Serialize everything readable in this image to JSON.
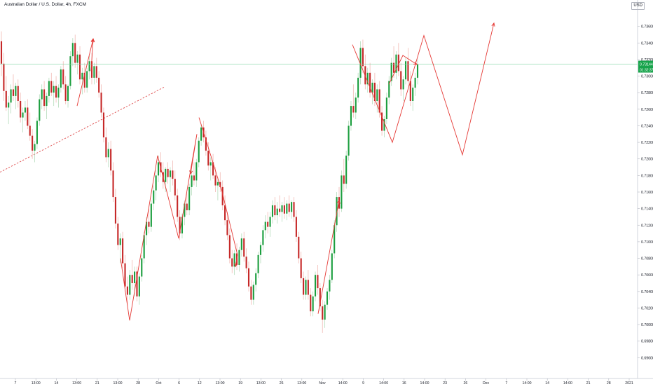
{
  "chart_data": {
    "type": "candlestick",
    "title": "Australian Dollar / U.S. Dollar, 4h, FXCM",
    "currency": "USD",
    "price_label": "0.73144",
    "countdown": "01:32:37",
    "ylim": [
      0.694,
      0.738
    ],
    "y_ticks": [
      "0.73600",
      "0.73400",
      "0.73200",
      "0.73000",
      "0.72800",
      "0.72600",
      "0.72400",
      "0.72200",
      "0.72000",
      "0.71800",
      "0.71600",
      "0.71400",
      "0.71200",
      "0.71000",
      "0.70800",
      "0.70600",
      "0.70400",
      "0.70200",
      "0.70000",
      "0.69800",
      "0.69600"
    ],
    "x_ticks": [
      "7",
      "13:00",
      "14",
      "13:00",
      "21",
      "13:00",
      "28",
      "Oct",
      "6",
      "12",
      "13:00",
      "19",
      "13:00",
      "26",
      "13:00",
      "Nov",
      "14:00",
      "9",
      "14:00",
      "16",
      "14:00",
      "23",
      "26",
      "Dec",
      "7",
      "14:00",
      "14",
      "14:00",
      "21",
      "28",
      "2021"
    ],
    "current_price": 0.73144,
    "candles": [
      [
        0.7342,
        0.7354,
        0.73,
        0.7315
      ],
      [
        0.7315,
        0.7328,
        0.727,
        0.7282
      ],
      [
        0.7282,
        0.73,
        0.7258,
        0.7262
      ],
      [
        0.7262,
        0.7276,
        0.7242,
        0.7268
      ],
      [
        0.7268,
        0.729,
        0.7255,
        0.7284
      ],
      [
        0.7284,
        0.7302,
        0.727,
        0.7276
      ],
      [
        0.7276,
        0.7292,
        0.726,
        0.7288
      ],
      [
        0.7288,
        0.7296,
        0.7262,
        0.727
      ],
      [
        0.727,
        0.728,
        0.7244,
        0.725
      ],
      [
        0.725,
        0.7262,
        0.7232,
        0.7256
      ],
      [
        0.7256,
        0.727,
        0.7246,
        0.7262
      ],
      [
        0.7262,
        0.7272,
        0.7236,
        0.724
      ],
      [
        0.724,
        0.7256,
        0.7222,
        0.7228
      ],
      [
        0.7228,
        0.7236,
        0.72,
        0.721
      ],
      [
        0.721,
        0.7222,
        0.7196,
        0.7218
      ],
      [
        0.7218,
        0.725,
        0.7212,
        0.7246
      ],
      [
        0.7246,
        0.7278,
        0.724,
        0.7272
      ],
      [
        0.7272,
        0.729,
        0.726,
        0.7284
      ],
      [
        0.7284,
        0.7294,
        0.7258,
        0.7264
      ],
      [
        0.7264,
        0.728,
        0.7248,
        0.7276
      ],
      [
        0.7276,
        0.7298,
        0.7268,
        0.7294
      ],
      [
        0.7294,
        0.7304,
        0.7276,
        0.728
      ],
      [
        0.728,
        0.7294,
        0.7264,
        0.7288
      ],
      [
        0.7288,
        0.73,
        0.7268,
        0.7274
      ],
      [
        0.7274,
        0.729,
        0.7262,
        0.7286
      ],
      [
        0.7286,
        0.7312,
        0.728,
        0.7308
      ],
      [
        0.7308,
        0.7318,
        0.7284,
        0.729
      ],
      [
        0.729,
        0.73,
        0.7266,
        0.727
      ],
      [
        0.727,
        0.729,
        0.7262,
        0.7288
      ],
      [
        0.7288,
        0.733,
        0.7284,
        0.7324
      ],
      [
        0.7324,
        0.7346,
        0.7312,
        0.734
      ],
      [
        0.734,
        0.735,
        0.731,
        0.7316
      ],
      [
        0.7316,
        0.733,
        0.7302,
        0.7326
      ],
      [
        0.7326,
        0.7336,
        0.729,
        0.7296
      ],
      [
        0.7296,
        0.731,
        0.7278,
        0.7304
      ],
      [
        0.7304,
        0.7316,
        0.728,
        0.7286
      ],
      [
        0.7286,
        0.731,
        0.728,
        0.7306
      ],
      [
        0.7306,
        0.7324,
        0.7296,
        0.7318
      ],
      [
        0.7318,
        0.7328,
        0.729,
        0.7298
      ],
      [
        0.7298,
        0.7316,
        0.729,
        0.7312
      ],
      [
        0.7312,
        0.7322,
        0.7292,
        0.7298
      ],
      [
        0.7298,
        0.7306,
        0.7274,
        0.728
      ],
      [
        0.728,
        0.729,
        0.725,
        0.7256
      ],
      [
        0.7256,
        0.7262,
        0.722,
        0.7226
      ],
      [
        0.7226,
        0.7238,
        0.7196,
        0.7202
      ],
      [
        0.7202,
        0.722,
        0.719,
        0.7212
      ],
      [
        0.7212,
        0.7222,
        0.718,
        0.7186
      ],
      [
        0.7186,
        0.7196,
        0.7148,
        0.7154
      ],
      [
        0.7154,
        0.7164,
        0.7116,
        0.7122
      ],
      [
        0.7122,
        0.713,
        0.709,
        0.7096
      ],
      [
        0.7096,
        0.711,
        0.7074,
        0.7104
      ],
      [
        0.7104,
        0.7112,
        0.7068,
        0.7074
      ],
      [
        0.7074,
        0.7084,
        0.704,
        0.7046
      ],
      [
        0.7046,
        0.7058,
        0.7022,
        0.7036
      ],
      [
        0.7036,
        0.7066,
        0.703,
        0.706
      ],
      [
        0.706,
        0.7078,
        0.7042,
        0.705
      ],
      [
        0.705,
        0.707,
        0.7034,
        0.7064
      ],
      [
        0.7064,
        0.707,
        0.7028,
        0.7034
      ],
      [
        0.7034,
        0.7062,
        0.7024,
        0.7058
      ],
      [
        0.7058,
        0.7084,
        0.7052,
        0.708
      ],
      [
        0.708,
        0.7112,
        0.7074,
        0.7108
      ],
      [
        0.7108,
        0.713,
        0.7096,
        0.7124
      ],
      [
        0.7124,
        0.714,
        0.711,
        0.7118
      ],
      [
        0.7118,
        0.715,
        0.7112,
        0.7146
      ],
      [
        0.7146,
        0.7168,
        0.7138,
        0.7162
      ],
      [
        0.7162,
        0.7186,
        0.715,
        0.718
      ],
      [
        0.718,
        0.7204,
        0.7172,
        0.7196
      ],
      [
        0.7196,
        0.7208,
        0.7178,
        0.7184
      ],
      [
        0.7184,
        0.7196,
        0.7164,
        0.7172
      ],
      [
        0.7172,
        0.719,
        0.716,
        0.7188
      ],
      [
        0.7188,
        0.7196,
        0.717,
        0.7178
      ],
      [
        0.7178,
        0.719,
        0.716,
        0.7186
      ],
      [
        0.7186,
        0.7198,
        0.7168,
        0.7176
      ],
      [
        0.7176,
        0.7186,
        0.715,
        0.7156
      ],
      [
        0.7156,
        0.7164,
        0.7124,
        0.713
      ],
      [
        0.713,
        0.7138,
        0.7102,
        0.711
      ],
      [
        0.711,
        0.7134,
        0.7104,
        0.713
      ],
      [
        0.713,
        0.715,
        0.712,
        0.7146
      ],
      [
        0.7146,
        0.716,
        0.7132,
        0.7138
      ],
      [
        0.7138,
        0.717,
        0.7132,
        0.7166
      ],
      [
        0.7166,
        0.7186,
        0.7156,
        0.718
      ],
      [
        0.718,
        0.7196,
        0.7168,
        0.7174
      ],
      [
        0.7174,
        0.72,
        0.7166,
        0.7196
      ],
      [
        0.7196,
        0.7226,
        0.719,
        0.7222
      ],
      [
        0.7222,
        0.7242,
        0.7216,
        0.7238
      ],
      [
        0.7238,
        0.7246,
        0.722,
        0.7226
      ],
      [
        0.7226,
        0.7234,
        0.7204,
        0.721
      ],
      [
        0.721,
        0.722,
        0.7186,
        0.7192
      ],
      [
        0.7192,
        0.7202,
        0.7174,
        0.7196
      ],
      [
        0.7196,
        0.7206,
        0.7176,
        0.718
      ],
      [
        0.718,
        0.719,
        0.716,
        0.7168
      ],
      [
        0.7168,
        0.7178,
        0.715,
        0.7172
      ],
      [
        0.7172,
        0.7184,
        0.716,
        0.7166
      ],
      [
        0.7166,
        0.7174,
        0.7138,
        0.7144
      ],
      [
        0.7144,
        0.7156,
        0.712,
        0.7126
      ],
      [
        0.7126,
        0.7136,
        0.7102,
        0.7108
      ],
      [
        0.7108,
        0.7116,
        0.7074,
        0.708
      ],
      [
        0.708,
        0.709,
        0.7062,
        0.707
      ],
      [
        0.707,
        0.709,
        0.706,
        0.7086
      ],
      [
        0.7086,
        0.7098,
        0.7066,
        0.7072
      ],
      [
        0.7072,
        0.7094,
        0.7064,
        0.709
      ],
      [
        0.709,
        0.711,
        0.7082,
        0.7104
      ],
      [
        0.7104,
        0.7112,
        0.7076,
        0.7082
      ],
      [
        0.7082,
        0.7092,
        0.7062,
        0.7068
      ],
      [
        0.7068,
        0.7076,
        0.704,
        0.7046
      ],
      [
        0.7046,
        0.7054,
        0.7024,
        0.703
      ],
      [
        0.703,
        0.7052,
        0.7024,
        0.7048
      ],
      [
        0.7048,
        0.7068,
        0.704,
        0.7062
      ],
      [
        0.7062,
        0.7088,
        0.7056,
        0.7084
      ],
      [
        0.7084,
        0.71,
        0.7074,
        0.7096
      ],
      [
        0.7096,
        0.712,
        0.7088,
        0.7114
      ],
      [
        0.7114,
        0.7132,
        0.7104,
        0.7124
      ],
      [
        0.7124,
        0.7136,
        0.711,
        0.7118
      ],
      [
        0.7118,
        0.7136,
        0.7106,
        0.713
      ],
      [
        0.713,
        0.715,
        0.7122,
        0.7144
      ],
      [
        0.7144,
        0.7154,
        0.7126,
        0.7132
      ],
      [
        0.7132,
        0.7148,
        0.7122,
        0.714
      ],
      [
        0.714,
        0.7156,
        0.713,
        0.7136
      ],
      [
        0.7136,
        0.7148,
        0.7124,
        0.7144
      ],
      [
        0.7144,
        0.7154,
        0.7128,
        0.7134
      ],
      [
        0.7134,
        0.715,
        0.7126,
        0.7146
      ],
      [
        0.7146,
        0.7156,
        0.713,
        0.7136
      ],
      [
        0.7136,
        0.715,
        0.7128,
        0.7148
      ],
      [
        0.7148,
        0.7154,
        0.7124,
        0.713
      ],
      [
        0.713,
        0.7138,
        0.71,
        0.7106
      ],
      [
        0.7106,
        0.7112,
        0.7074,
        0.708
      ],
      [
        0.708,
        0.7088,
        0.705,
        0.7056
      ],
      [
        0.7056,
        0.7064,
        0.703,
        0.7036
      ],
      [
        0.7036,
        0.7058,
        0.703,
        0.7054
      ],
      [
        0.7054,
        0.7066,
        0.703,
        0.7036
      ],
      [
        0.7036,
        0.7044,
        0.701,
        0.7016
      ],
      [
        0.7016,
        0.704,
        0.701,
        0.7034
      ],
      [
        0.7034,
        0.7064,
        0.7028,
        0.706
      ],
      [
        0.706,
        0.7072,
        0.7036,
        0.7044
      ],
      [
        0.7044,
        0.705,
        0.7016,
        0.7022
      ],
      [
        0.7022,
        0.703,
        0.699,
        0.7006
      ],
      [
        0.7006,
        0.7028,
        0.6996,
        0.7024
      ],
      [
        0.7024,
        0.7044,
        0.7018,
        0.704
      ],
      [
        0.704,
        0.706,
        0.703,
        0.7054
      ],
      [
        0.7054,
        0.709,
        0.705,
        0.7086
      ],
      [
        0.7086,
        0.7126,
        0.708,
        0.712
      ],
      [
        0.712,
        0.716,
        0.7112,
        0.7154
      ],
      [
        0.7154,
        0.7166,
        0.713,
        0.714
      ],
      [
        0.714,
        0.7186,
        0.7136,
        0.718
      ],
      [
        0.718,
        0.72,
        0.716,
        0.717
      ],
      [
        0.717,
        0.721,
        0.7164,
        0.7204
      ],
      [
        0.7204,
        0.7246,
        0.7198,
        0.724
      ],
      [
        0.724,
        0.727,
        0.7234,
        0.7264
      ],
      [
        0.7264,
        0.729,
        0.725,
        0.7256
      ],
      [
        0.7256,
        0.728,
        0.7248,
        0.7274
      ],
      [
        0.7274,
        0.7304,
        0.7268,
        0.7298
      ],
      [
        0.7298,
        0.7342,
        0.729,
        0.7334
      ],
      [
        0.7334,
        0.7344,
        0.7304,
        0.7312
      ],
      [
        0.7312,
        0.7326,
        0.7284,
        0.729
      ],
      [
        0.729,
        0.731,
        0.728,
        0.7304
      ],
      [
        0.7304,
        0.7316,
        0.7274,
        0.728
      ],
      [
        0.728,
        0.7296,
        0.7266,
        0.7292
      ],
      [
        0.7292,
        0.7304,
        0.7264,
        0.727
      ],
      [
        0.727,
        0.729,
        0.7256,
        0.7284
      ],
      [
        0.7284,
        0.7294,
        0.725,
        0.7256
      ],
      [
        0.7256,
        0.7264,
        0.7228,
        0.7234
      ],
      [
        0.7234,
        0.7252,
        0.7226,
        0.7248
      ],
      [
        0.7248,
        0.728,
        0.7242,
        0.7274
      ],
      [
        0.7274,
        0.73,
        0.7266,
        0.7294
      ],
      [
        0.7294,
        0.7322,
        0.7288,
        0.7316
      ],
      [
        0.7316,
        0.7336,
        0.7298,
        0.7304
      ],
      [
        0.7304,
        0.733,
        0.7296,
        0.7326
      ],
      [
        0.7326,
        0.734,
        0.73,
        0.7306
      ],
      [
        0.7306,
        0.7316,
        0.7276,
        0.7284
      ],
      [
        0.7284,
        0.73,
        0.727,
        0.7296
      ],
      [
        0.7296,
        0.7322,
        0.729,
        0.7318
      ],
      [
        0.7318,
        0.7334,
        0.7288,
        0.7294
      ],
      [
        0.7294,
        0.7306,
        0.7264,
        0.727
      ],
      [
        0.727,
        0.729,
        0.7258,
        0.7286
      ],
      [
        0.7286,
        0.7304,
        0.7276,
        0.7298
      ],
      [
        0.7298,
        0.732,
        0.729,
        0.7314
      ]
    ],
    "annotations": {
      "dashed_trendline": [
        [
          0,
          0.7184
        ],
        [
          235,
          0.7287
        ]
      ],
      "arrows": [
        [
          [
            110,
            0.7264
          ],
          [
            133,
            0.7345
          ]
        ],
        [
          [
            130,
            0.7306
          ],
          [
            133,
            0.7345
          ]
        ],
        [
          [
            172,
            0.708
          ],
          [
            185,
            0.7005
          ],
          [
            225,
            0.7204
          ],
          [
            255,
            0.7104
          ],
          [
            281,
            0.723
          ],
          [
            272,
            0.7182
          ]
        ],
        [
          [
            284,
            0.725
          ],
          [
            317,
            0.716
          ],
          [
            339,
            0.7084
          ],
          [
            336,
            0.707
          ]
        ],
        [
          [
            454,
            0.7013
          ],
          [
            484,
            0.715
          ]
        ],
        [
          [
            503,
            0.7338
          ],
          [
            560,
            0.722
          ],
          [
            605,
            0.7349
          ],
          [
            660,
            0.7205
          ],
          [
            705,
            0.7364
          ]
        ],
        [
          [
            555,
            0.729
          ],
          [
            575,
            0.7325
          ],
          [
            595,
            0.7314
          ]
        ]
      ]
    }
  }
}
